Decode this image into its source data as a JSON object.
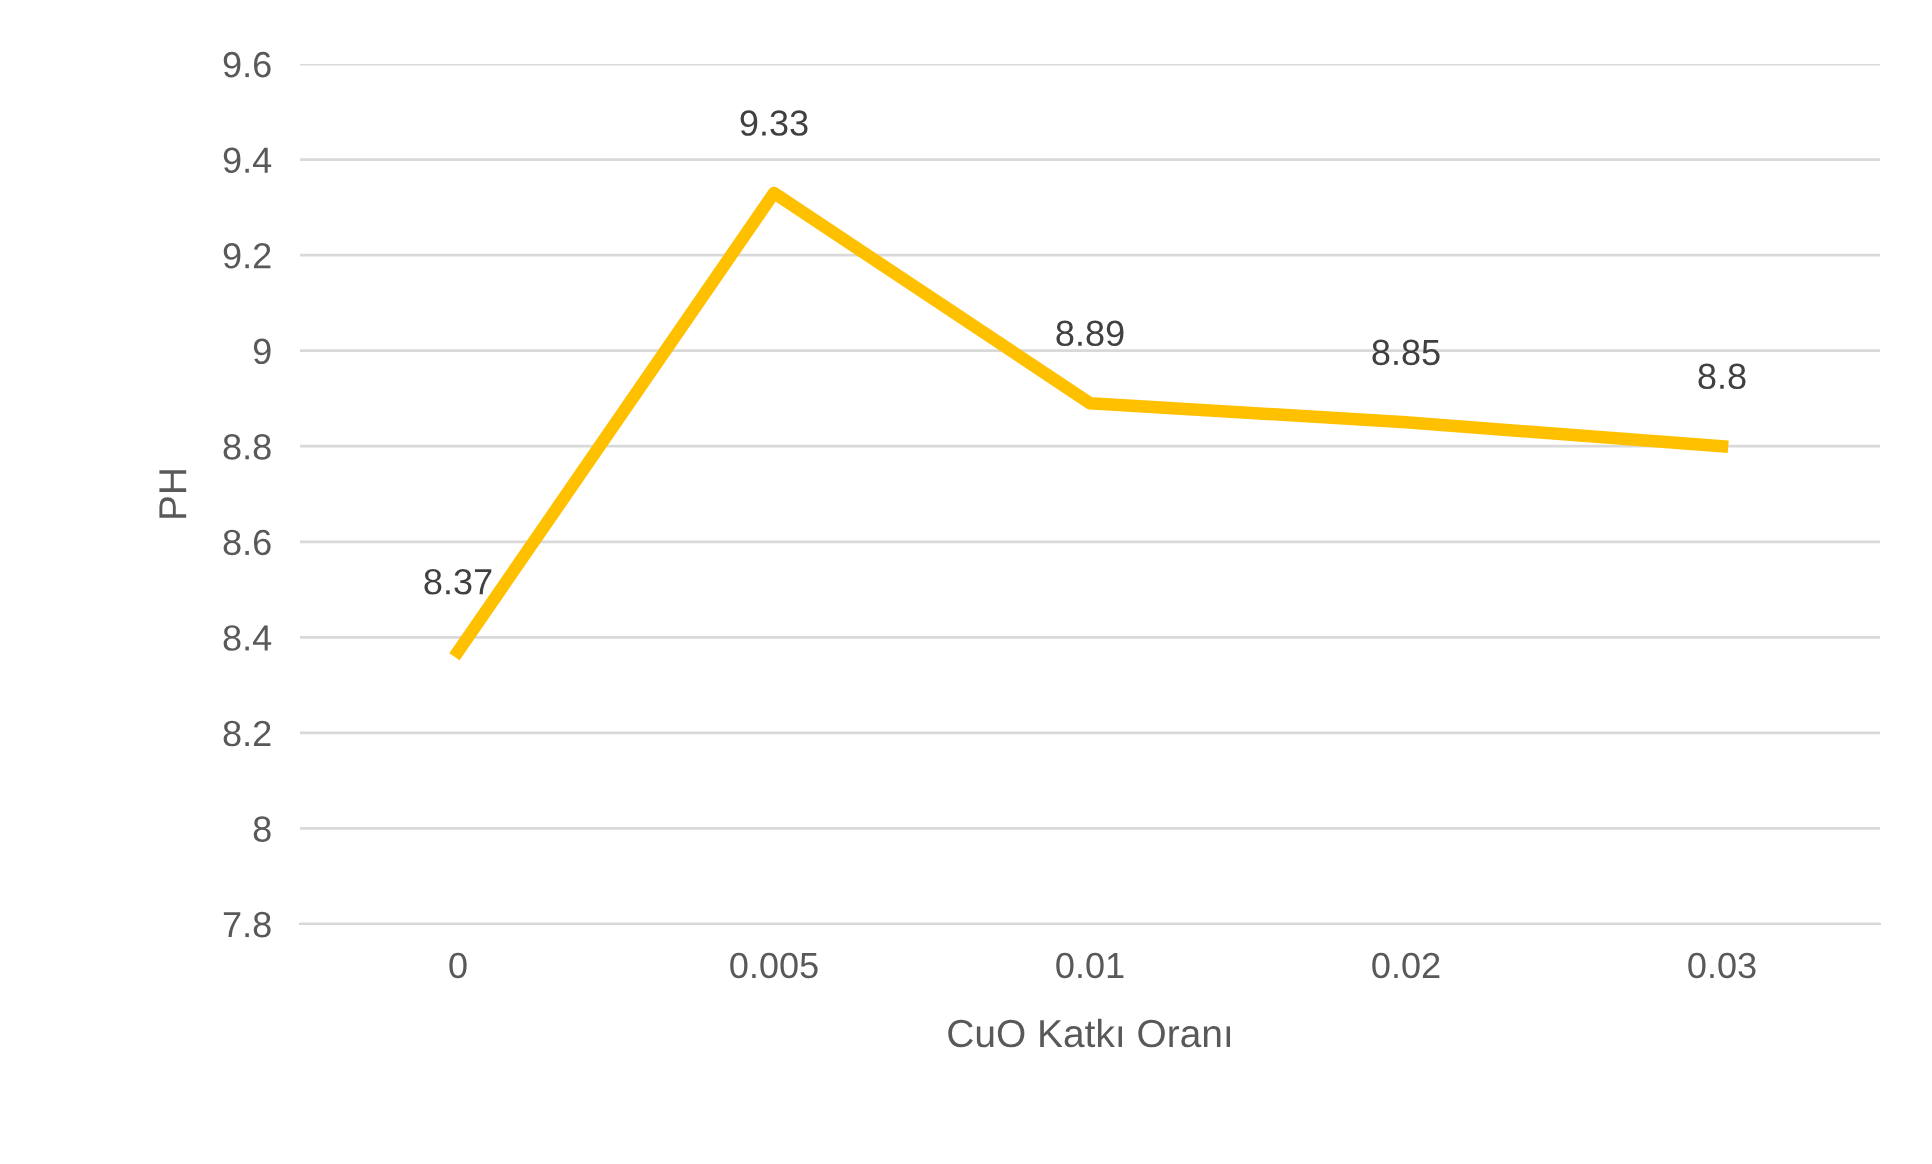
{
  "chart_data": {
    "type": "line",
    "xlabel": "CuO Katkı Oranı",
    "ylabel": "PH",
    "categories": [
      "0",
      "0.005",
      "0.01",
      "0.02",
      "0.03"
    ],
    "series": [
      {
        "color": "#ffc000",
        "values": [
          8.37,
          9.33,
          8.89,
          8.85,
          8.8
        ]
      }
    ],
    "ylim": [
      7.8,
      9.6
    ],
    "yticks": [
      7.8,
      8,
      8.2,
      8.4,
      8.6,
      8.8,
      9,
      9.2,
      9.4,
      9.6
    ],
    "grid": "y",
    "data_labels": true,
    "marker": "none",
    "line_style": "solid",
    "legend": false
  }
}
